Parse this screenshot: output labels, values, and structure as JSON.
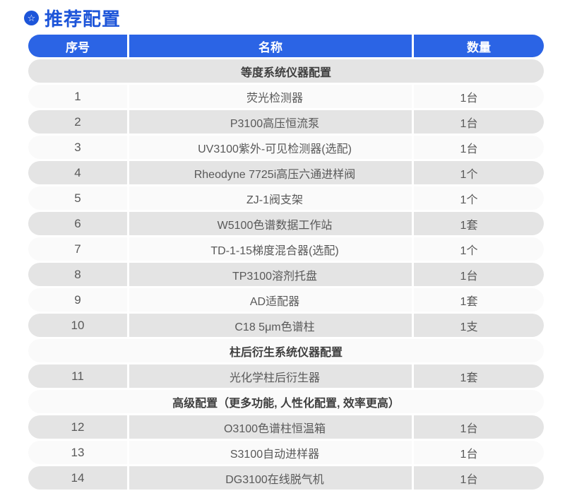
{
  "page": {
    "title": "推荐配置"
  },
  "icons": {
    "title_badge": "☆"
  },
  "colors": {
    "title_blue": "#1d55d9",
    "header_blue": "#2b64e5",
    "row_gray": "#e4e4e4",
    "row_light": "#fafafa",
    "section_text": "#3f3f3f",
    "cell_text": "#595959"
  },
  "table": {
    "columns": [
      "序号",
      "名称",
      "数量"
    ],
    "rows": [
      {
        "type": "section",
        "label": "等度系统仪器配置"
      },
      {
        "type": "item",
        "no": "1",
        "name": "荧光检测器",
        "qty": "1台"
      },
      {
        "type": "item",
        "no": "2",
        "name": "P3100高压恒流泵",
        "qty": "1台"
      },
      {
        "type": "item",
        "no": "3",
        "name": "UV3100紫外-可见检测器(选配)",
        "qty": "1台"
      },
      {
        "type": "item",
        "no": "4",
        "name": "Rheodyne 7725i高压六通进样阀",
        "qty": "1个"
      },
      {
        "type": "item",
        "no": "5",
        "name": "ZJ-1阀支架",
        "qty": "1个"
      },
      {
        "type": "item",
        "no": "6",
        "name": "W5100色谱数据工作站",
        "qty": "1套"
      },
      {
        "type": "item",
        "no": "7",
        "name": "TD-1-15梯度混合器(选配)",
        "qty": "1个"
      },
      {
        "type": "item",
        "no": "8",
        "name": "TP3100溶剂托盘",
        "qty": "1台"
      },
      {
        "type": "item",
        "no": "9",
        "name": "AD适配器",
        "qty": "1套"
      },
      {
        "type": "item",
        "no": "10",
        "name": "C18 5μm色谱柱",
        "qty": "1支"
      },
      {
        "type": "section",
        "label": "柱后衍生系统仪器配置"
      },
      {
        "type": "item",
        "no": "11",
        "name": "光化学柱后衍生器",
        "qty": "1套"
      },
      {
        "type": "section",
        "label": "高级配置（更多功能, 人性化配置, 效率更高）"
      },
      {
        "type": "item",
        "no": "12",
        "name": "O3100色谱柱恒温箱",
        "qty": "1台"
      },
      {
        "type": "item",
        "no": "13",
        "name": "S3100自动进样器",
        "qty": "1台"
      },
      {
        "type": "item",
        "no": "14",
        "name": "DG3100在线脱气机",
        "qty": "1台"
      }
    ]
  }
}
